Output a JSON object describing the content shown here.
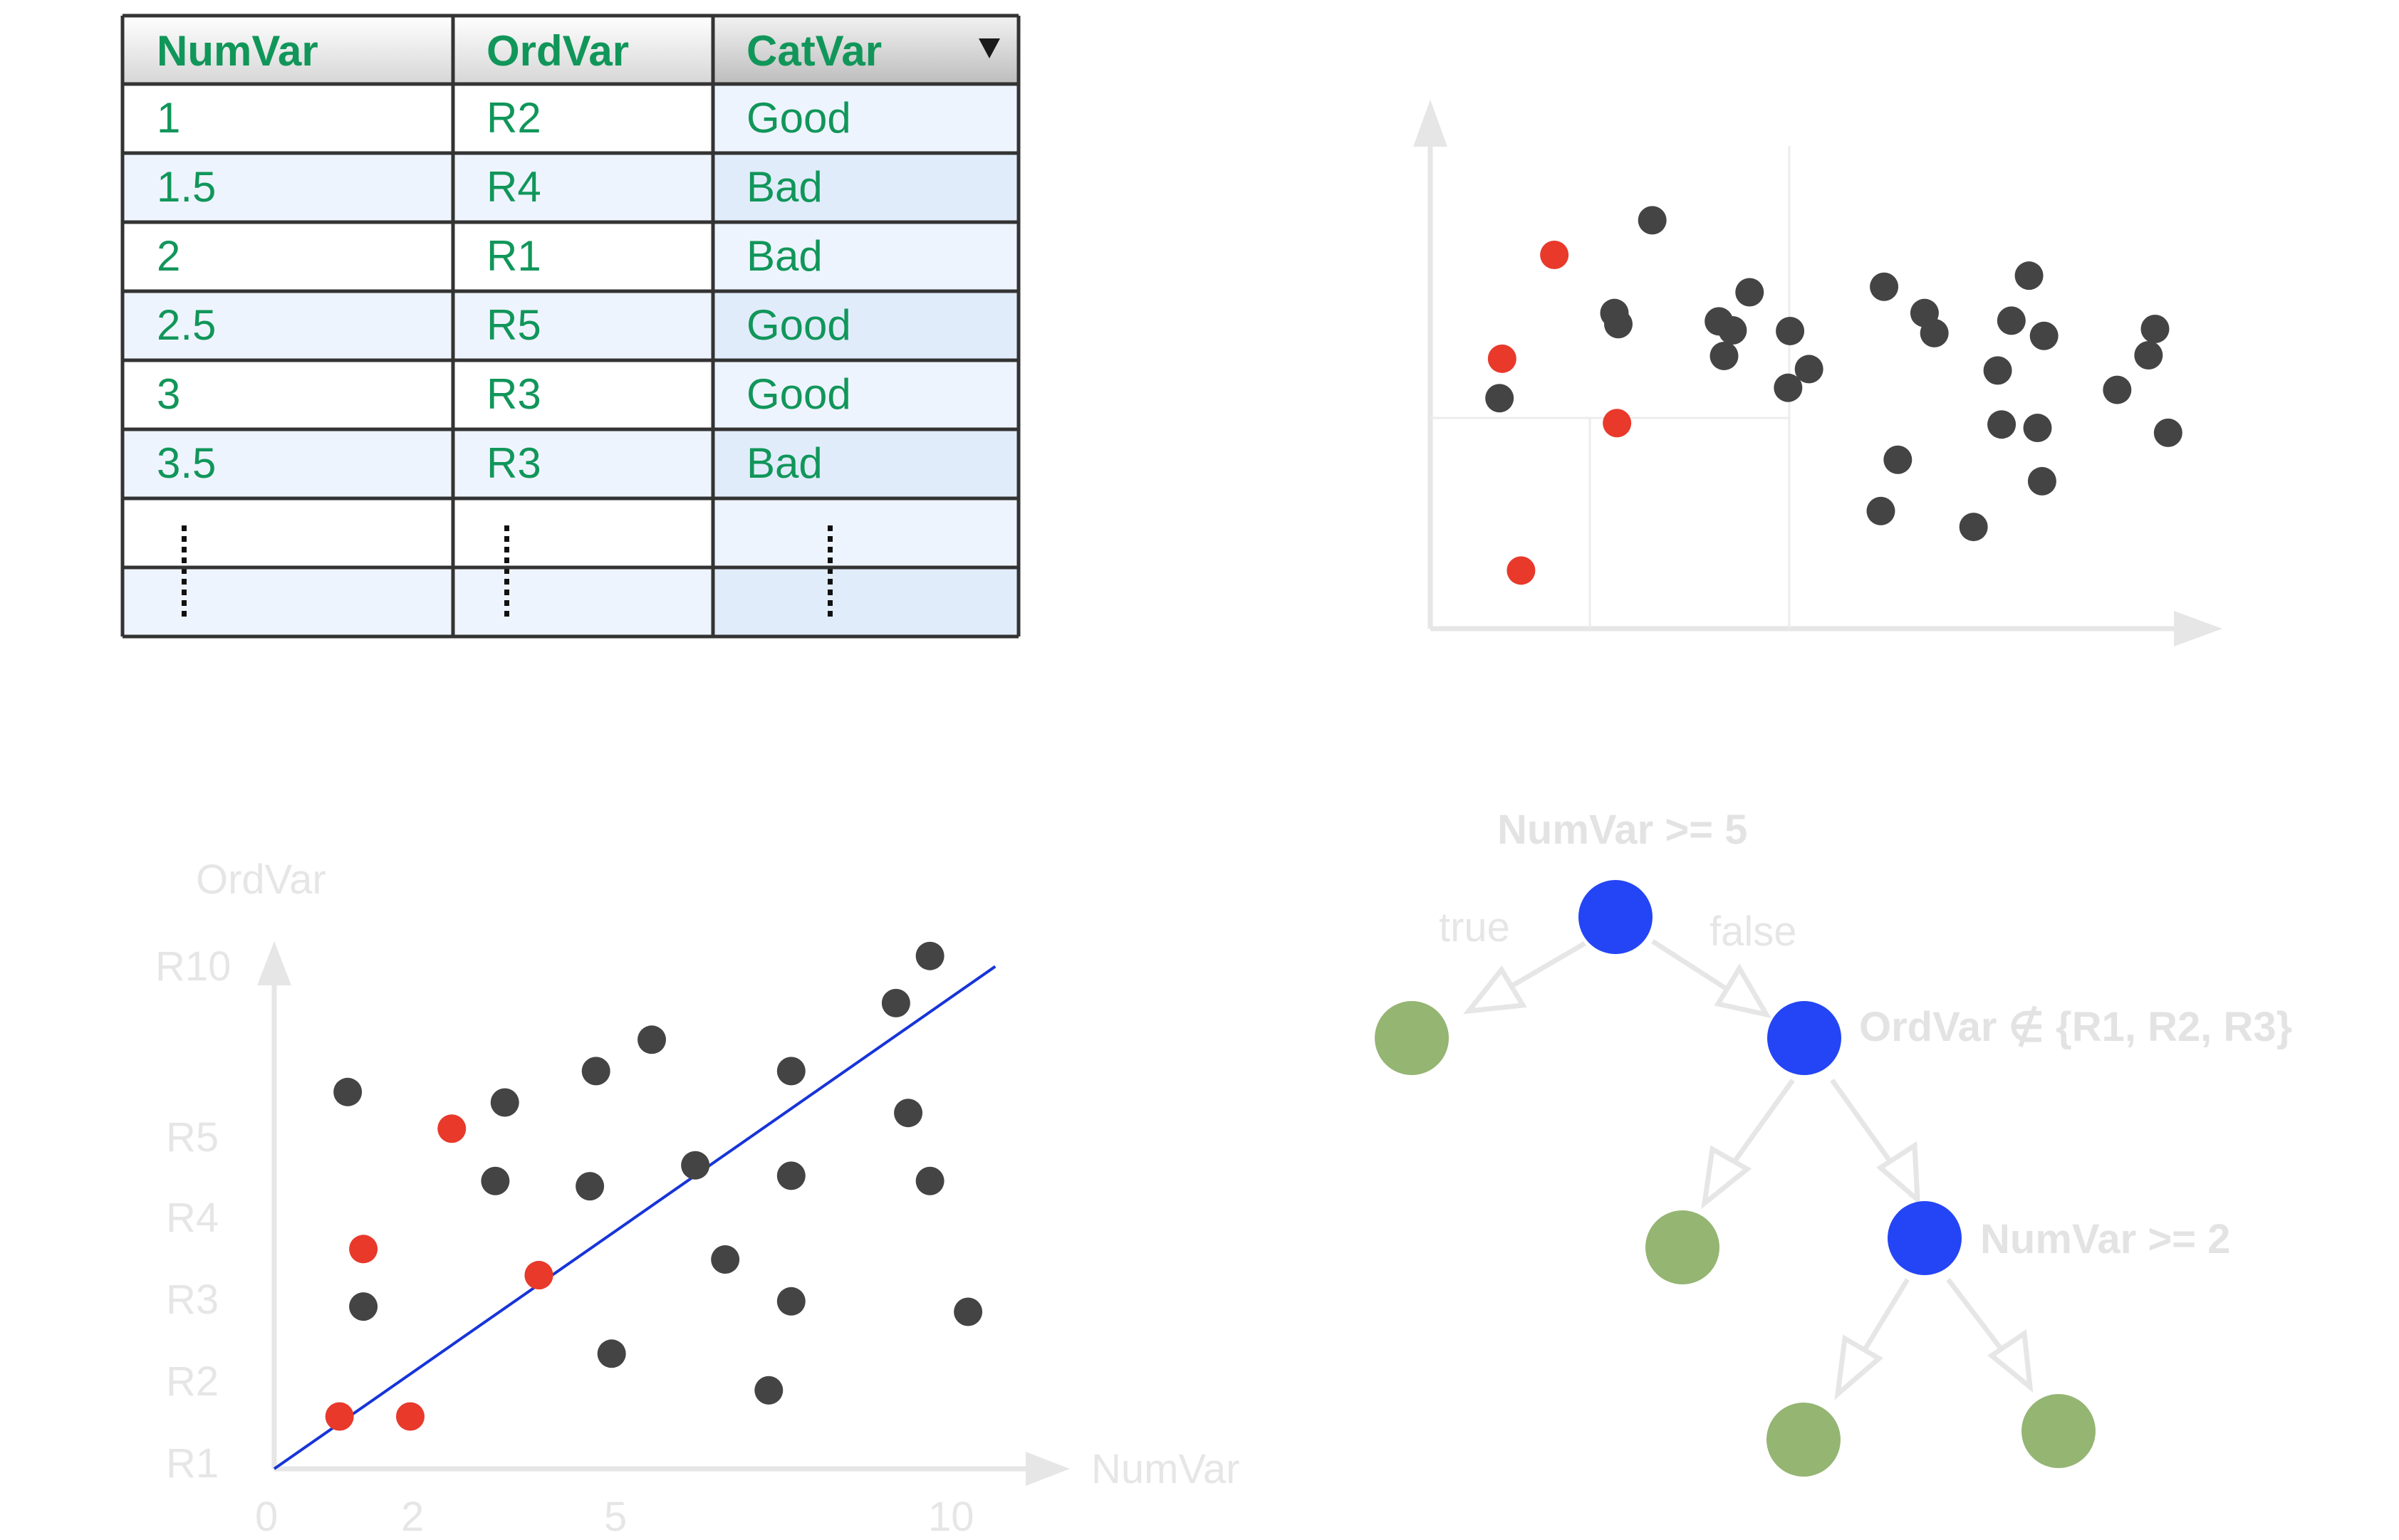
{
  "table": {
    "headers": [
      "NumVar",
      "OrdVar",
      "CatVar"
    ],
    "header_dropdown_icon": "triangle-down-icon",
    "rows": [
      [
        "1",
        "R2",
        "Good"
      ],
      [
        "1.5",
        "R4",
        "Bad"
      ],
      [
        "2",
        "R1",
        "Bad"
      ],
      [
        "2.5",
        "R5",
        "Good"
      ],
      [
        "3",
        "R3",
        "Good"
      ],
      [
        "3.5",
        "R3",
        "Bad"
      ]
    ],
    "ellipsis_rows": 2,
    "colors": {
      "text": "#11965a",
      "row_light": "#ffffff",
      "row_tint": "#eef4fd",
      "catvar_tint": "#e1ecfb",
      "border": "#333333"
    }
  },
  "scatter_partition": {
    "axes_color": "#e6e6e6",
    "point_color_dark": "#444444",
    "point_color_red": "#e8392b",
    "dark_points": [
      [
        1.06,
        3.33
      ],
      [
        3.4,
        5.9
      ],
      [
        2.82,
        4.56
      ],
      [
        2.88,
        4.4
      ],
      [
        4.42,
        4.44
      ],
      [
        4.63,
        4.31
      ],
      [
        4.5,
        3.94
      ],
      [
        4.89,
        4.86
      ],
      [
        5.51,
        4.3
      ],
      [
        5.8,
        3.75
      ],
      [
        5.48,
        3.48
      ],
      [
        6.95,
        4.94
      ],
      [
        7.57,
        4.56
      ],
      [
        7.72,
        4.27
      ],
      [
        8.9,
        4.45
      ],
      [
        8.69,
        3.73
      ],
      [
        9.17,
        5.1
      ],
      [
        9.4,
        4.23
      ],
      [
        7.16,
        2.44
      ],
      [
        8.75,
        2.95
      ],
      [
        9.3,
        2.9
      ],
      [
        9.37,
        2.13
      ],
      [
        10.52,
        3.45
      ],
      [
        11.0,
        3.95
      ],
      [
        11.1,
        4.33
      ],
      [
        11.3,
        2.83
      ],
      [
        6.9,
        1.7
      ],
      [
        8.32,
        1.47
      ]
    ],
    "red_points": [
      [
        1.1,
        3.9
      ],
      [
        1.9,
        5.4
      ],
      [
        2.86,
        2.97
      ],
      [
        1.39,
        0.84
      ]
    ]
  },
  "scatter_regression": {
    "xlabel": "NumVar",
    "ylabel": "OrdVar",
    "x_ticks": [
      "0",
      "2",
      "5",
      "10"
    ],
    "y_ticks": [
      "R1",
      "R2",
      "R3",
      "R4",
      "R5",
      "R10"
    ],
    "line_color": "#1734d9",
    "point_color_dark": "#444444",
    "point_color_red": "#e8392b",
    "dark_points": [
      [
        1.08,
        7.2
      ],
      [
        1.31,
        3.1
      ],
      [
        3.39,
        7.0
      ],
      [
        3.25,
        5.5
      ],
      [
        4.64,
        5.4
      ],
      [
        4.73,
        7.6
      ],
      [
        6.19,
        5.8
      ],
      [
        5.55,
        8.2
      ],
      [
        6.63,
        4.0
      ],
      [
        7.6,
        7.6
      ],
      [
        7.6,
        5.6
      ],
      [
        7.6,
        3.2
      ],
      [
        7.27,
        1.5
      ],
      [
        9.14,
        8.9
      ],
      [
        9.32,
        6.8
      ],
      [
        9.64,
        9.8
      ],
      [
        9.64,
        5.5
      ],
      [
        10.2,
        3.0
      ],
      [
        4.96,
        2.2
      ]
    ],
    "red_points": [
      [
        0.96,
        1.0
      ],
      [
        1.31,
        4.2
      ],
      [
        2.61,
        6.5
      ],
      [
        3.89,
        3.7
      ],
      [
        2.0,
        1.0
      ],
      [
        3.89,
        3.7
      ]
    ],
    "regression_line": [
      [
        0,
        0
      ],
      [
        10.6,
        9.6
      ]
    ]
  },
  "tree": {
    "root_label": "NumVar >= 5",
    "true_label": "true",
    "false_label": "false",
    "split2_label": "OrdVar ∉ {R1, R2, R3}",
    "split3_label": "NumVar >= 2",
    "colors": {
      "split_node": "#2445f5",
      "leaf_node": "#95b573",
      "edge": "#e6e6e6",
      "text": "#e3e3e3"
    }
  }
}
